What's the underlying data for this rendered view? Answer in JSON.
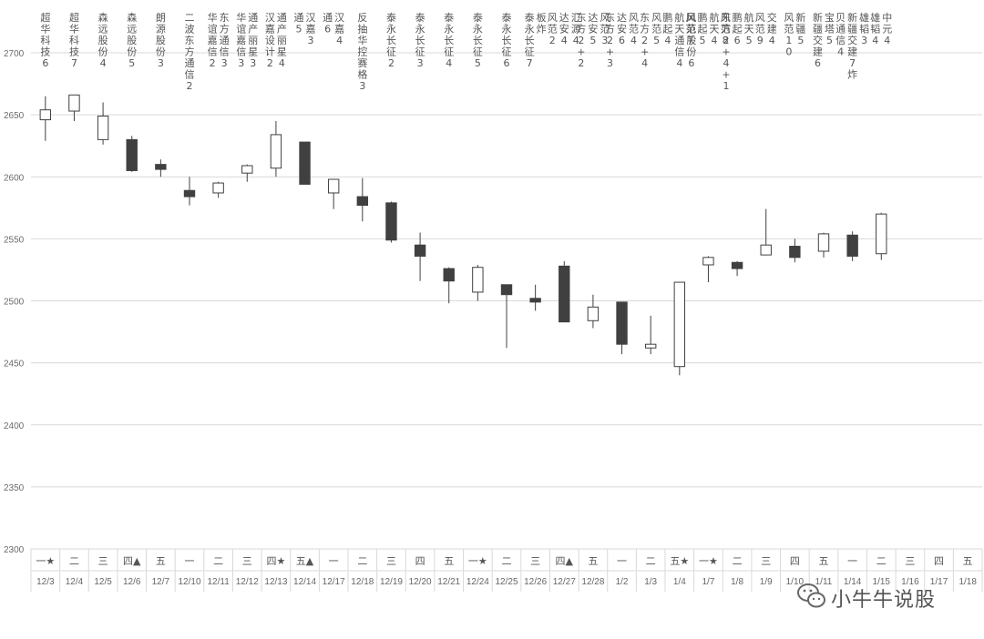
{
  "chart_data": {
    "type": "candlestick",
    "title": "",
    "xlabel": "",
    "ylabel": "",
    "ylim": [
      2300,
      2700
    ],
    "yticks": [
      2300,
      2350,
      2400,
      2450,
      2500,
      2550,
      2600,
      2650,
      2700
    ],
    "grid": true,
    "colors": {
      "up": "#ffffff",
      "down": "#404040",
      "outline": "#404040"
    },
    "sessions": [
      {
        "weekday": "一",
        "mark": "★",
        "date": "12/3",
        "open": 2646,
        "close": 2654,
        "high": 2665,
        "low": 2629,
        "note": [
          "超华科技6"
        ]
      },
      {
        "weekday": "二",
        "mark": "",
        "date": "12/4",
        "open": 2653,
        "close": 2666,
        "high": 2666,
        "low": 2645,
        "note": [
          "超华科技7"
        ]
      },
      {
        "weekday": "三",
        "mark": "",
        "date": "12/5",
        "open": 2630,
        "close": 2649,
        "high": 2660,
        "low": 2626,
        "note": [
          "森远股份4"
        ]
      },
      {
        "weekday": "四",
        "mark": "▲",
        "date": "12/6",
        "open": 2630,
        "close": 2605,
        "high": 2633,
        "low": 2604,
        "note": [
          "森远股份5"
        ]
      },
      {
        "weekday": "五",
        "mark": "",
        "date": "12/7",
        "open": 2610,
        "close": 2606,
        "high": 2614,
        "low": 2600,
        "note": [
          "朗源股份3"
        ]
      },
      {
        "weekday": "一",
        "mark": "",
        "date": "12/10",
        "open": 2589,
        "close": 2584,
        "high": 2600,
        "low": 2577,
        "note": [
          "二波东方通信2"
        ]
      },
      {
        "weekday": "二",
        "mark": "",
        "date": "12/11",
        "open": 2587,
        "close": 2595,
        "high": 2596,
        "low": 2583,
        "note": [
          "华谊嘉信2",
          "东方通信3"
        ]
      },
      {
        "weekday": "三",
        "mark": "",
        "date": "12/12",
        "open": 2603,
        "close": 2609,
        "high": 2610,
        "low": 2596,
        "note": [
          "华谊嘉信3",
          "通产丽星3"
        ]
      },
      {
        "weekday": "四",
        "mark": "★",
        "date": "12/13",
        "open": 2607,
        "close": 2634,
        "high": 2645,
        "low": 2600,
        "note": [
          "汉嘉设计2",
          "通产丽星4"
        ]
      },
      {
        "weekday": "五",
        "mark": "▲",
        "date": "12/14",
        "open": 2628,
        "close": 2594,
        "high": 2628,
        "low": 2594,
        "note": [
          "通5",
          "汉嘉3"
        ]
      },
      {
        "weekday": "一",
        "mark": "",
        "date": "12/17",
        "open": 2587,
        "close": 2598,
        "high": 2598,
        "low": 2574,
        "note": [
          "通6",
          "汉嘉4"
        ]
      },
      {
        "weekday": "二",
        "mark": "",
        "date": "12/18",
        "open": 2584,
        "close": 2577,
        "high": 2599,
        "low": 2564,
        "note": [
          "反抽华控赛格3"
        ]
      },
      {
        "weekday": "三",
        "mark": "",
        "date": "12/19",
        "open": 2579,
        "close": 2549,
        "high": 2580,
        "low": 2547,
        "note": [
          "泰永长征2"
        ]
      },
      {
        "weekday": "四",
        "mark": "",
        "date": "12/20",
        "open": 2545,
        "close": 2536,
        "high": 2555,
        "low": 2516,
        "note": [
          "泰永长征3"
        ]
      },
      {
        "weekday": "五",
        "mark": "",
        "date": "12/21",
        "open": 2526,
        "close": 2516,
        "high": 2527,
        "low": 2498,
        "note": [
          "泰永长征4"
        ]
      },
      {
        "weekday": "一",
        "mark": "★",
        "date": "12/24",
        "open": 2507,
        "close": 2527,
        "high": 2529,
        "low": 2500,
        "note": [
          "泰永长征5"
        ]
      },
      {
        "weekday": "二",
        "mark": "",
        "date": "12/25",
        "open": 2513,
        "close": 2505,
        "high": 2513,
        "low": 2462,
        "note": [
          "泰永长征6"
        ]
      },
      {
        "weekday": "三",
        "mark": "",
        "date": "12/26",
        "open": 2502,
        "close": 2499,
        "high": 2513,
        "low": 2492,
        "note": [
          "泰永长征7",
          "板炸"
        ]
      },
      {
        "weekday": "四",
        "mark": "▲",
        "date": "12/27",
        "open": 2528,
        "close": 2483,
        "high": 2532,
        "low": 2483,
        "note": [
          "风范2",
          "达安4",
          "汇源4"
        ]
      },
      {
        "weekday": "五",
        "mark": "",
        "date": "12/28",
        "open": 2484,
        "close": 2495,
        "high": 2505,
        "low": 2478,
        "note": [
          "东方2+2",
          "达安5",
          "风范3"
        ]
      },
      {
        "weekday": "一",
        "mark": "",
        "date": "1/2",
        "open": 2499,
        "close": 2465,
        "high": 2499,
        "low": 2457,
        "note": [
          "东方2+3",
          "达安6",
          "风范4"
        ]
      },
      {
        "weekday": "二",
        "mark": "",
        "date": "1/3",
        "open": 2462,
        "close": 2465,
        "high": 2488,
        "low": 2457,
        "note": [
          "东方2+4",
          "风范5"
        ]
      },
      {
        "weekday": "五",
        "mark": "★",
        "date": "1/4",
        "open": 2447,
        "close": 2515,
        "high": 2515,
        "low": 2440,
        "note": [
          "鹏起4",
          "航天通信4",
          "风范股份6"
        ]
      },
      {
        "weekday": "一",
        "mark": "★",
        "date": "1/7",
        "open": 2529,
        "close": 2535,
        "high": 2536,
        "low": 2515,
        "note": [
          "风范7",
          "鹏起5",
          "航天4",
          "东方2+4+1"
        ]
      },
      {
        "weekday": "二",
        "mark": "",
        "date": "1/8",
        "open": 2531,
        "close": 2526,
        "high": 2532,
        "low": 2520,
        "note": [
          "风范8",
          "鹏起6",
          "航天5"
        ]
      },
      {
        "weekday": "三",
        "mark": "",
        "date": "1/9",
        "open": 2537,
        "close": 2545,
        "high": 2574,
        "low": 2537,
        "note": [
          "风范9",
          "交建4"
        ]
      },
      {
        "weekday": "四",
        "mark": "",
        "date": "1/10",
        "open": 2544,
        "close": 2535,
        "high": 2550,
        "low": 2531,
        "note": [
          "风范10",
          "新疆5"
        ]
      },
      {
        "weekday": "五",
        "mark": "",
        "date": "1/11",
        "open": 2540,
        "close": 2554,
        "high": 2555,
        "low": 2535,
        "note": [
          "新疆交建6",
          "宝塔5"
        ]
      },
      {
        "weekday": "一",
        "mark": "",
        "date": "1/14",
        "open": 2553,
        "close": 2536,
        "high": 2556,
        "low": 2532,
        "note": [
          "贝通信4",
          "新疆交建7炸",
          "雄韬3"
        ]
      },
      {
        "weekday": "二",
        "mark": "",
        "date": "1/15",
        "open": 2538,
        "close": 2570,
        "high": 2571,
        "low": 2533,
        "note": [
          "雄韬4",
          "中元4"
        ]
      },
      {
        "weekday": "三",
        "mark": "",
        "date": "1/16"
      },
      {
        "weekday": "四",
        "mark": "",
        "date": "1/17"
      },
      {
        "weekday": "五",
        "mark": "",
        "date": "1/18"
      }
    ]
  },
  "watermark": {
    "text": "小牛牛说股",
    "icon": "wechat-icon"
  }
}
